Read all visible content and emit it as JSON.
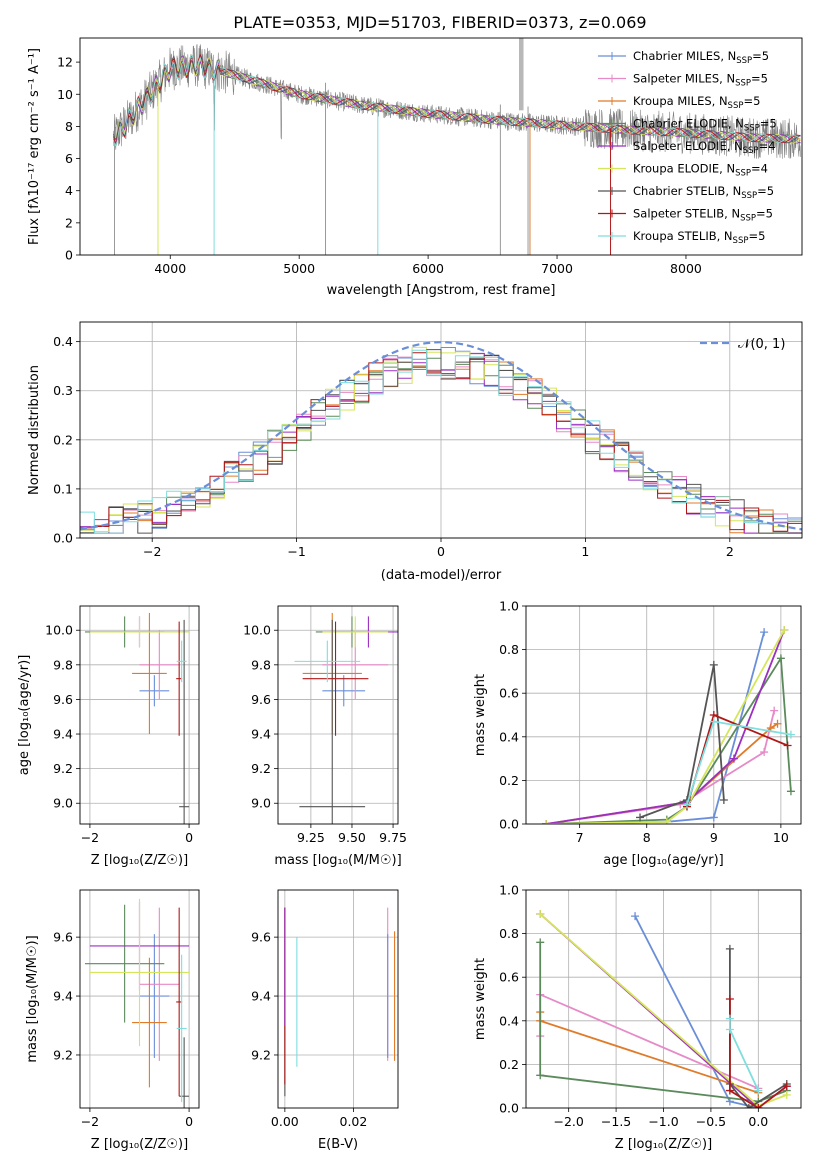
{
  "title": "PLATE=0353, MJD=51703, FIBERID=0373, z=0.069",
  "colors": {
    "Chabrier MILES": "#6a8fd8",
    "Salpeter MILES": "#e68ac8",
    "Kroupa MILES": "#e07b2a",
    "Chabrier ELODIE": "#5b8a5b",
    "Salpeter ELODIE": "#9b30c0",
    "Kroupa ELODIE": "#d6e65a",
    "Chabrier STELIB": "#555555",
    "Salpeter STELIB": "#b01818",
    "Kroupa STELIB": "#7fdede",
    "data": "#808080"
  },
  "chart_data": [
    {
      "type": "line",
      "id": "spectrum",
      "xlabel": "wavelength [Angstrom, rest frame]",
      "ylabel": "Flux [f",
      "ylabel_full": "Flux [fλ10⁻¹⁷ erg cm⁻² s⁻¹ A⁻¹]",
      "xlim": [
        3300,
        8900
      ],
      "ylim": [
        0,
        13.5
      ],
      "xticks": [
        4000,
        5000,
        6000,
        7000,
        8000
      ],
      "yticks": [
        0,
        2,
        4,
        6,
        8,
        10,
        12
      ],
      "legend_position": "top-right",
      "continuum": {
        "x": [
          3560,
          3700,
          3900,
          4000,
          4200,
          4500,
          5000,
          5500,
          6000,
          6500,
          7000,
          7500,
          8000,
          8500,
          8900
        ],
        "y": [
          7.3,
          8.6,
          10.6,
          11.6,
          11.8,
          11.2,
          10.0,
          9.3,
          8.8,
          8.4,
          8.1,
          7.8,
          7.6,
          7.3,
          7.2
        ]
      },
      "legend": [
        {
          "name": "Chabrier MILES, N",
          "sub": "SSP",
          "tail": "=5"
        },
        {
          "name": "Salpeter MILES, N",
          "sub": "SSP",
          "tail": "=5"
        },
        {
          "name": "Kroupa MILES, N",
          "sub": "SSP",
          "tail": "=5"
        },
        {
          "name": "Chabrier ELODIE, N",
          "sub": "SSP",
          "tail": "=5"
        },
        {
          "name": "Salpeter ELODIE, N",
          "sub": "SSP",
          "tail": "=4"
        },
        {
          "name": "Kroupa ELODIE, N",
          "sub": "SSP",
          "tail": "=4"
        },
        {
          "name": "Chabrier STELIB, N",
          "sub": "SSP",
          "tail": "=5"
        },
        {
          "name": "Salpeter STELIB, N",
          "sub": "SSP",
          "tail": "=5"
        },
        {
          "name": "Kroupa STELIB, N",
          "sub": "SSP",
          "tail": "=5"
        }
      ]
    },
    {
      "type": "histogram",
      "id": "residuals",
      "xlabel": "(data-model)/error",
      "ylabel": "Normed distribution",
      "xlim": [
        -2.5,
        2.5
      ],
      "ylim": [
        0,
        0.44
      ],
      "xticks": [
        -2,
        -1,
        0,
        1,
        2
      ],
      "yticks": [
        0.0,
        0.1,
        0.2,
        0.3,
        0.4
      ],
      "bins": 50,
      "gaussian_legend": "𝒩(0, 1)",
      "legend_position": "top-right"
    },
    {
      "type": "scatter",
      "id": "age_vs_Z",
      "xlabel": "Z [log₁₀(Z/Z☉)]",
      "ylabel": "age  [log₁₀(age/yr)]",
      "xlim": [
        -2.2,
        0.2
      ],
      "ylim": [
        8.88,
        10.14
      ],
      "xticks": [
        -2,
        0
      ],
      "yticks": [
        9.0,
        9.2,
        9.4,
        9.6,
        9.8,
        10.0
      ],
      "points": [
        {
          "model": "Chabrier MILES",
          "x": -0.7,
          "xerr": 0.3,
          "y": 9.65,
          "yerr": 0.09
        },
        {
          "model": "Salpeter MILES",
          "x": -0.6,
          "xerr": 0.4,
          "y": 9.8,
          "yerr": 0.2
        },
        {
          "model": "Kroupa MILES",
          "x": -0.8,
          "xerr": 0.35,
          "y": 9.75,
          "yerr": 0.35
        },
        {
          "model": "Chabrier ELODIE",
          "x": -1.3,
          "xerr": 0.8,
          "y": 9.99,
          "yerr": 0.09
        },
        {
          "model": "Salpeter ELODIE",
          "x": -1.0,
          "xerr": 1.0,
          "y": 9.99,
          "yerr": 0.09
        },
        {
          "model": "Kroupa ELODIE",
          "x": -1.0,
          "xerr": 1.0,
          "y": 9.99,
          "yerr": 0.09
        },
        {
          "model": "Chabrier STELIB",
          "x": -0.1,
          "xerr": 0.1,
          "y": 8.98,
          "yerr": 1.08
        },
        {
          "model": "Salpeter STELIB",
          "x": -0.2,
          "xerr": 0.06,
          "y": 9.72,
          "yerr": 0.33
        },
        {
          "model": "Kroupa STELIB",
          "x": -0.15,
          "xerr": 0.1,
          "y": 9.82,
          "yerr": 0.12
        }
      ]
    },
    {
      "type": "scatter",
      "id": "age_vs_mass",
      "xlabel": "mass [log₁₀(M/M☉)]",
      "xlim": [
        9.05,
        9.78
      ],
      "ylim": [
        8.88,
        10.14
      ],
      "xticks": [
        9.25,
        9.5,
        9.75
      ],
      "yticks": [
        9.0,
        9.2,
        9.4,
        9.6,
        9.8,
        10.0
      ],
      "points": [
        {
          "model": "Chabrier MILES",
          "x": 9.45,
          "xerr": 0.13,
          "y": 9.65,
          "yerr": 0.09
        },
        {
          "model": "Salpeter MILES",
          "x": 9.52,
          "xerr": 0.2,
          "y": 9.8,
          "yerr": 0.2
        },
        {
          "model": "Kroupa MILES",
          "x": 9.38,
          "xerr": 0.18,
          "y": 9.75,
          "yerr": 0.35
        },
        {
          "model": "Chabrier ELODIE",
          "x": 9.5,
          "xerr": 0.22,
          "y": 9.99,
          "yerr": 0.09
        },
        {
          "model": "Salpeter ELODIE",
          "x": 9.6,
          "xerr": 0.2,
          "y": 9.99,
          "yerr": 0.09
        },
        {
          "model": "Kroupa ELODIE",
          "x": 9.52,
          "xerr": 0.2,
          "y": 9.99,
          "yerr": 0.09
        },
        {
          "model": "Chabrier STELIB",
          "x": 9.38,
          "xerr": 0.2,
          "y": 8.98,
          "yerr": 1.08
        },
        {
          "model": "Salpeter STELIB",
          "x": 9.4,
          "xerr": 0.2,
          "y": 9.72,
          "yerr": 0.33
        },
        {
          "model": "Kroupa STELIB",
          "x": 9.35,
          "xerr": 0.2,
          "y": 9.82,
          "yerr": 0.12
        }
      ]
    },
    {
      "type": "line",
      "id": "weight_vs_age",
      "xlabel": "age  [log₁₀(age/yr)]",
      "ylabel": "mass weight",
      "xlim": [
        6.2,
        10.3
      ],
      "ylim": [
        0,
        1.0
      ],
      "xticks": [
        7,
        8,
        9,
        10
      ],
      "yticks": [
        0.0,
        0.2,
        0.4,
        0.6,
        0.8,
        1.0
      ],
      "series": [
        {
          "model": "Chabrier MILES",
          "x": [
            6.5,
            8.3,
            9.0,
            9.75
          ],
          "y": [
            0.0,
            0.01,
            0.03,
            0.88
          ]
        },
        {
          "model": "Salpeter MILES",
          "x": [
            6.5,
            8.5,
            9.75,
            9.9
          ],
          "y": [
            0.0,
            0.09,
            0.33,
            0.52
          ]
        },
        {
          "model": "Kroupa MILES",
          "x": [
            6.5,
            8.6,
            9.85,
            9.95
          ],
          "y": [
            0.0,
            0.1,
            0.44,
            0.46
          ]
        },
        {
          "model": "Chabrier ELODIE",
          "x": [
            6.5,
            8.3,
            8.6,
            10.0,
            10.15
          ],
          "y": [
            0.0,
            0.02,
            0.08,
            0.76,
            0.15
          ]
        },
        {
          "model": "Salpeter ELODIE",
          "x": [
            6.5,
            8.6,
            9.3,
            10.05
          ],
          "y": [
            0.0,
            0.1,
            0.3,
            0.89
          ]
        },
        {
          "model": "Kroupa ELODIE",
          "x": [
            6.5,
            8.3,
            8.6,
            10.05
          ],
          "y": [
            0.0,
            0.01,
            0.08,
            0.89
          ]
        },
        {
          "model": "Chabrier STELIB",
          "x": [
            7.9,
            8.6,
            9.0,
            9.15
          ],
          "y": [
            0.03,
            0.11,
            0.73,
            0.11
          ]
        },
        {
          "model": "Salpeter STELIB",
          "x": [
            8.6,
            9.0,
            10.1
          ],
          "y": [
            0.08,
            0.5,
            0.36
          ]
        },
        {
          "model": "Kroupa STELIB",
          "x": [
            8.6,
            9.0,
            10.15
          ],
          "y": [
            0.09,
            0.47,
            0.41
          ]
        }
      ]
    },
    {
      "type": "scatter",
      "id": "mass_vs_Z",
      "xlabel": "Z [log₁₀(Z/Z☉)]",
      "ylabel": "mass [log₁₀(M/M☉)]",
      "xlim": [
        -2.2,
        0.2
      ],
      "ylim": [
        9.02,
        9.76
      ],
      "xticks": [
        -2,
        0
      ],
      "yticks": [
        9.2,
        9.4,
        9.6
      ],
      "points": [
        {
          "model": "Chabrier MILES",
          "x": -0.7,
          "xerr": 0.3,
          "y": 9.4,
          "yerr": 0.21
        },
        {
          "model": "Salpeter MILES",
          "x": -0.6,
          "xerr": 0.4,
          "y": 9.44,
          "yerr": 0.26
        },
        {
          "model": "Kroupa MILES",
          "x": -0.8,
          "xerr": 0.35,
          "y": 9.31,
          "yerr": 0.22
        },
        {
          "model": "Chabrier ELODIE",
          "x": -1.3,
          "xerr": 0.8,
          "y": 9.51,
          "yerr": 0.2
        },
        {
          "model": "Salpeter ELODIE",
          "x": -1.0,
          "xerr": 1.0,
          "y": 9.57,
          "yerr": 0.15
        },
        {
          "model": "Kroupa ELODIE",
          "x": -1.0,
          "xerr": 1.0,
          "y": 9.48,
          "yerr": 0.25
        },
        {
          "model": "Chabrier STELIB",
          "x": -0.1,
          "xerr": 0.1,
          "y": 9.06,
          "yerr": 0.2
        },
        {
          "model": "Salpeter STELIB",
          "x": -0.2,
          "xerr": 0.06,
          "y": 9.38,
          "yerr": 0.32
        },
        {
          "model": "Kroupa STELIB",
          "x": -0.15,
          "xerr": 0.1,
          "y": 9.29,
          "yerr": 0.25
        }
      ]
    },
    {
      "type": "scatter",
      "id": "mass_vs_ebv",
      "xlabel": "E(B-V)",
      "xlim": [
        -0.002,
        0.033
      ],
      "ylim": [
        9.02,
        9.76
      ],
      "xticks": [
        0.0,
        0.02
      ],
      "yticks": [
        9.2,
        9.4,
        9.6
      ],
      "points": [
        {
          "model": "Salpeter MILES",
          "x": 0.03,
          "y": 9.44,
          "yerr": 0.26
        },
        {
          "model": "Kroupa MILES",
          "x": 0.032,
          "y": 9.4,
          "yerr": 0.22
        },
        {
          "model": "Chabrier MILES",
          "x": 0.03,
          "y": 9.4,
          "yerr": 0.21
        },
        {
          "model": "Chabrier STELIB",
          "x": 0.0,
          "y": 9.38,
          "yerr": 0.32
        },
        {
          "model": "Salpeter STELIB",
          "x": 0.0,
          "y": 9.4,
          "yerr": 0.3
        },
        {
          "model": "Salpeter ELODIE",
          "x": 0.0,
          "y": 9.5,
          "yerr": 0.2
        },
        {
          "model": "Kroupa STELIB",
          "x": 0.0035,
          "y": 9.38,
          "yerr": 0.22
        }
      ]
    },
    {
      "type": "line",
      "id": "weight_vs_Z",
      "xlabel": "Z [log₁₀(Z/Z☉)]",
      "ylabel": "mass weight",
      "xlim": [
        -2.45,
        0.45
      ],
      "ylim": [
        0,
        1.0
      ],
      "xticks": [
        -2.0,
        -1.5,
        -1.0,
        -0.5,
        0.0
      ],
      "yticks": [
        0.0,
        0.2,
        0.4,
        0.6,
        0.8,
        1.0
      ],
      "series": [
        {
          "model": "Chabrier MILES",
          "x": [
            -1.3,
            -0.3,
            0.0
          ],
          "y": [
            0.88,
            0.03,
            0.0
          ]
        },
        {
          "model": "Salpeter MILES",
          "x": [
            -2.3,
            -2.3,
            0.0
          ],
          "y": [
            0.33,
            0.52,
            0.09
          ]
        },
        {
          "model": "Kroupa MILES",
          "x": [
            -2.3,
            -2.3,
            0.0
          ],
          "y": [
            0.44,
            0.4,
            0.07
          ]
        },
        {
          "model": "Chabrier ELODIE",
          "x": [
            -2.3,
            -2.3,
            0.0,
            0.3
          ],
          "y": [
            0.76,
            0.15,
            0.03,
            0.08
          ]
        },
        {
          "model": "Salpeter ELODIE",
          "x": [
            -2.3,
            0.0,
            0.3
          ],
          "y": [
            0.89,
            0.0,
            0.1
          ]
        },
        {
          "model": "Kroupa ELODIE",
          "x": [
            -2.3,
            0.0,
            0.3
          ],
          "y": [
            0.89,
            0.01,
            0.06
          ]
        },
        {
          "model": "Chabrier STELIB",
          "x": [
            -0.3,
            -0.3,
            -0.1,
            0.3
          ],
          "y": [
            0.73,
            0.11,
            0.0,
            0.11
          ]
        },
        {
          "model": "Salpeter STELIB",
          "x": [
            -0.3,
            -0.3,
            0.0,
            0.3
          ],
          "y": [
            0.5,
            0.08,
            0.0,
            0.1
          ]
        },
        {
          "model": "Kroupa STELIB",
          "x": [
            -0.3,
            -0.3,
            0.0
          ],
          "y": [
            0.41,
            0.36,
            0.08
          ]
        }
      ]
    }
  ]
}
